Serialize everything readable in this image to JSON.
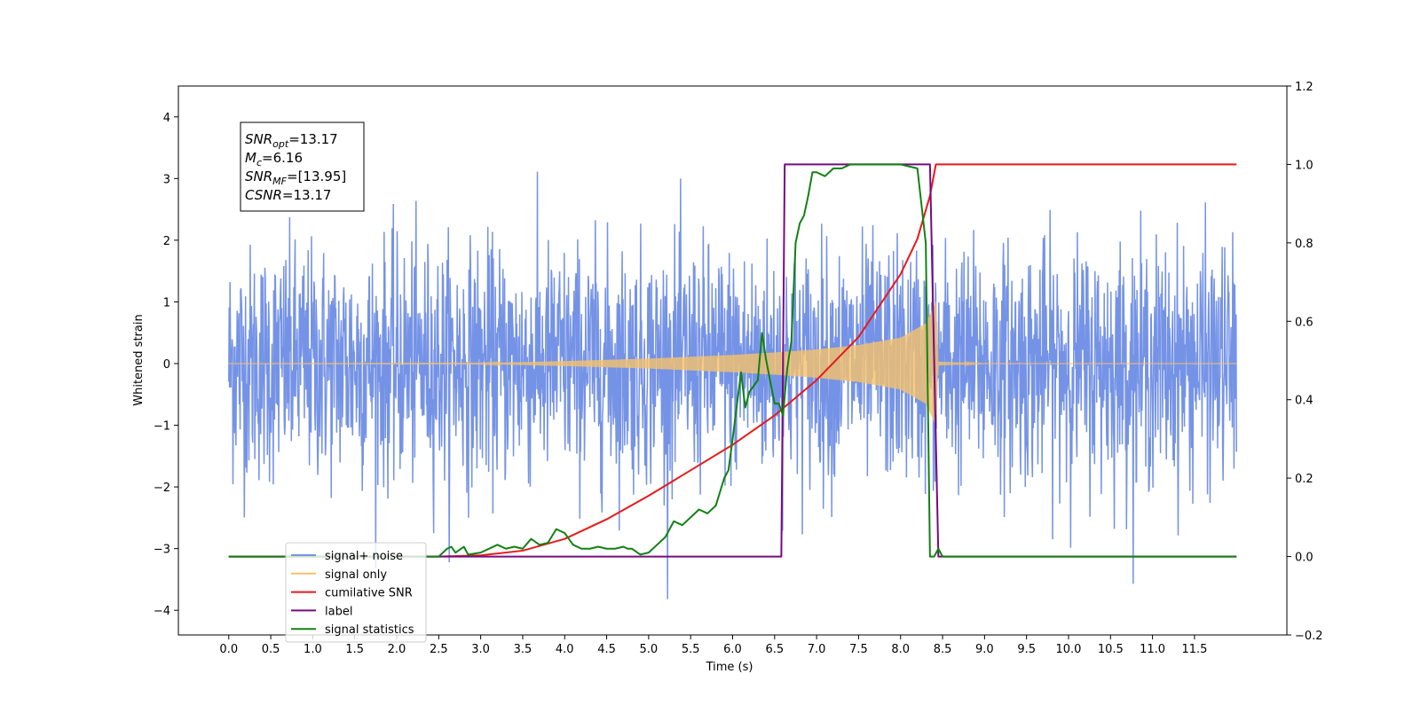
{
  "chart_data": {
    "type": "line",
    "xlabel": "Time (s)",
    "ylabel": "Whitened strain",
    "xlim": [
      -0.6,
      12.6
    ],
    "ylim_left": [
      -4.4,
      4.5
    ],
    "ylim_right": [
      -0.2,
      1.2
    ],
    "x_ticks": [
      0.0,
      0.5,
      1.0,
      1.5,
      2.0,
      2.5,
      3.0,
      3.5,
      4.0,
      4.5,
      5.0,
      5.5,
      6.0,
      6.5,
      7.0,
      7.5,
      8.0,
      8.5,
      9.0,
      9.5,
      10.0,
      10.5,
      11.0,
      11.5
    ],
    "x_tick_labels": [
      "0.0",
      "0.5",
      "1.0",
      "1.5",
      "2.0",
      "2.5",
      "3.0",
      "3.5",
      "4.0",
      "4.5",
      "5.0",
      "5.5",
      "6.0",
      "6.5",
      "7.0",
      "7.5",
      "8.0",
      "8.5",
      "9.0",
      "9.5",
      "10.0",
      "10.5",
      "11.0",
      "11.5"
    ],
    "y_left_ticks": [
      4,
      3,
      2,
      1,
      0,
      -1,
      -2,
      -3,
      -4
    ],
    "y_left_tick_labels": [
      "4",
      "3",
      "2",
      "1",
      "0",
      "−1",
      "−2",
      "−3",
      "−4"
    ],
    "y_right_ticks": [
      1.2,
      1.0,
      0.8,
      0.6,
      0.4,
      0.2,
      0.0,
      -0.2
    ],
    "y_right_tick_labels": [
      "1.2",
      "1.0",
      "0.8",
      "0.6",
      "0.4",
      "0.2",
      "0.0",
      "−0.2"
    ],
    "grid": false,
    "legend_position": "bottom-left",
    "annotation": {
      "lines": [
        {
          "name": "SNR",
          "sub": "opt",
          "value": "=13.17"
        },
        {
          "name": "M",
          "sub": "c",
          "value": "=6.16"
        },
        {
          "name": "SNR",
          "sub": "MF",
          "value": "=[13.95]"
        },
        {
          "name": "CSNR",
          "sub": "",
          "value": "=13.17"
        }
      ]
    },
    "series": [
      {
        "name": "signal+ noise",
        "axis": "left",
        "color": "#7593e6",
        "kind": "noise",
        "x_range": [
          0.0,
          12.0
        ],
        "envelope_typical": 1.7,
        "peak_max": 4.15
      },
      {
        "name": "signal only",
        "axis": "left",
        "color": "#f5c26b",
        "kind": "chirp",
        "x_range": [
          0.0,
          12.0
        ],
        "merger_time": 8.42,
        "envelope_points": [
          [
            0.0,
            0.0
          ],
          [
            3.0,
            0.005
          ],
          [
            4.0,
            0.04
          ],
          [
            5.0,
            0.08
          ],
          [
            6.0,
            0.14
          ],
          [
            6.5,
            0.18
          ],
          [
            7.0,
            0.23
          ],
          [
            7.5,
            0.3
          ],
          [
            8.0,
            0.42
          ],
          [
            8.3,
            0.65
          ],
          [
            8.42,
            1.0
          ],
          [
            8.45,
            0.03
          ],
          [
            9.0,
            0.0
          ],
          [
            12.0,
            0.0
          ]
        ]
      },
      {
        "name": "cumilative SNR",
        "axis": "right",
        "color": "#e8191b",
        "x": [
          0.0,
          2.5,
          3.0,
          3.5,
          4.0,
          4.5,
          5.0,
          5.5,
          6.0,
          6.5,
          7.0,
          7.5,
          8.0,
          8.2,
          8.35,
          8.42,
          8.43,
          12.0
        ],
        "y": [
          0.0,
          0.0,
          0.003,
          0.015,
          0.045,
          0.095,
          0.155,
          0.22,
          0.285,
          0.36,
          0.45,
          0.56,
          0.72,
          0.81,
          0.92,
          1.0,
          1.0,
          1.0
        ]
      },
      {
        "name": "label",
        "axis": "right",
        "color": "#770a80",
        "x": [
          0.0,
          6.58,
          6.62,
          8.35,
          8.45,
          12.0
        ],
        "y": [
          0.0,
          0.0,
          1.0,
          1.0,
          0.0,
          0.0
        ]
      },
      {
        "name": "signal statistics",
        "axis": "right",
        "color": "#128112",
        "x": [
          0.0,
          2.5,
          2.6,
          2.65,
          2.7,
          2.8,
          2.85,
          3.0,
          3.2,
          3.3,
          3.4,
          3.5,
          3.6,
          3.7,
          3.8,
          3.9,
          4.0,
          4.1,
          4.2,
          4.3,
          4.4,
          4.5,
          4.6,
          4.7,
          4.75,
          4.8,
          4.9,
          5.0,
          5.1,
          5.2,
          5.3,
          5.4,
          5.5,
          5.6,
          5.7,
          5.8,
          5.9,
          5.95,
          6.0,
          6.1,
          6.15,
          6.2,
          6.3,
          6.35,
          6.4,
          6.5,
          6.55,
          6.6,
          6.65,
          6.7,
          6.75,
          6.8,
          6.85,
          6.9,
          6.95,
          7.0,
          7.1,
          7.2,
          7.3,
          7.4,
          7.5,
          7.6,
          7.8,
          8.0,
          8.2,
          8.3,
          8.35,
          8.4,
          8.45,
          8.5,
          8.55,
          8.6,
          12.0
        ],
        "y": [
          0.0,
          0.0,
          0.02,
          0.025,
          0.01,
          0.025,
          0.005,
          0.01,
          0.03,
          0.02,
          0.025,
          0.02,
          0.045,
          0.03,
          0.035,
          0.07,
          0.06,
          0.03,
          0.02,
          0.02,
          0.025,
          0.02,
          0.02,
          0.025,
          0.02,
          0.02,
          0.005,
          0.01,
          0.03,
          0.05,
          0.09,
          0.08,
          0.1,
          0.12,
          0.11,
          0.13,
          0.2,
          0.22,
          0.3,
          0.47,
          0.38,
          0.42,
          0.45,
          0.57,
          0.5,
          0.39,
          0.39,
          0.36,
          0.48,
          0.55,
          0.8,
          0.85,
          0.87,
          0.92,
          0.98,
          0.98,
          0.97,
          0.99,
          0.99,
          1.0,
          1.0,
          1.0,
          1.0,
          1.0,
          0.99,
          0.8,
          0.0,
          0.0,
          0.02,
          0.0,
          0.0,
          0.0,
          0.0
        ]
      }
    ]
  }
}
